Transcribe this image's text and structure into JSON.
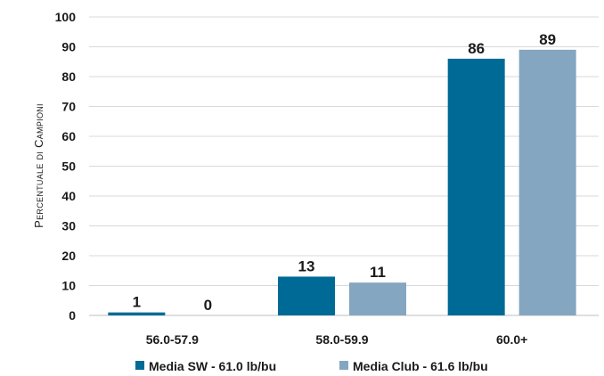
{
  "chart_data": {
    "type": "bar",
    "categories": [
      "56.0-57.9",
      "58.0-59.9",
      "60.0+"
    ],
    "series": [
      {
        "name": "Media SW - 61.0 lb/bu",
        "values": [
          1,
          13,
          86
        ],
        "color": "#006a96"
      },
      {
        "name": "Media Club - 61.6 lb/bu",
        "values": [
          0,
          11,
          89
        ],
        "color": "#84a6c0"
      }
    ],
    "ylabel": "Percentuale di Campioni",
    "xlabel": "",
    "ylim": [
      0,
      100
    ],
    "yticks": [
      0,
      10,
      20,
      30,
      40,
      50,
      60,
      70,
      80,
      90,
      100
    ],
    "grid": true,
    "legend_position": "bottom"
  }
}
